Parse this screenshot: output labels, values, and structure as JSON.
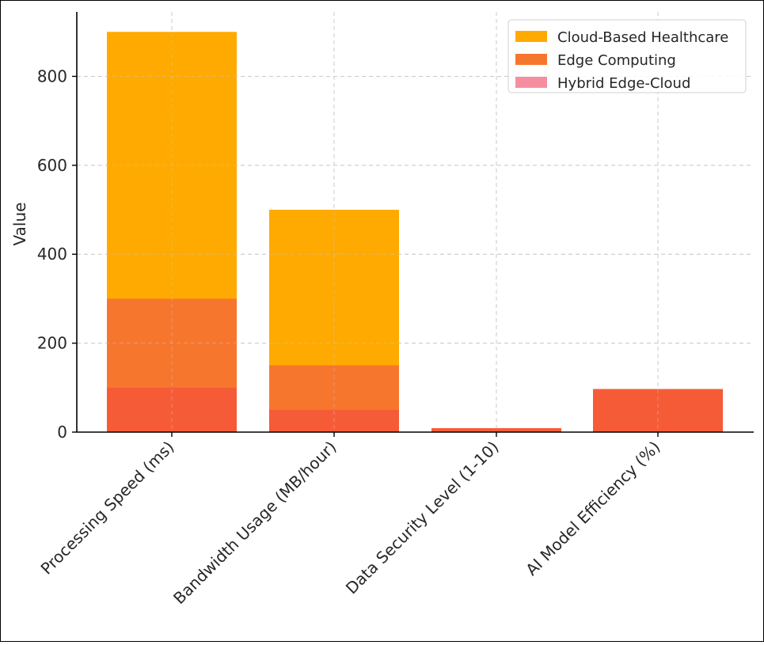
{
  "chart_data": {
    "type": "bar",
    "stacked_mode": "overlaid",
    "title": "",
    "xlabel": "",
    "ylabel": "Value",
    "ylim": [
      0,
      945
    ],
    "yticks": [
      0,
      200,
      400,
      600,
      800
    ],
    "categories": [
      "Processing Speed (ms)",
      "Bandwidth Usage (MB/hour)",
      "Data Security Level (1-10)",
      "AI Model Efficiency (%)"
    ],
    "series": [
      {
        "name": "Cloud-Based Healthcare",
        "color": "#FFAA00",
        "values": [
          900,
          500,
          7,
          92
        ]
      },
      {
        "name": "Edge Computing",
        "color": "#F7762D",
        "values": [
          300,
          150,
          8,
          95
        ]
      },
      {
        "name": "Hybrid Edge-Cloud",
        "color": "#F58FA0",
        "values": [
          100,
          50,
          9,
          97
        ]
      }
    ],
    "overlap_color": "#F55A38",
    "grid": true,
    "legend_position": "top-right"
  }
}
